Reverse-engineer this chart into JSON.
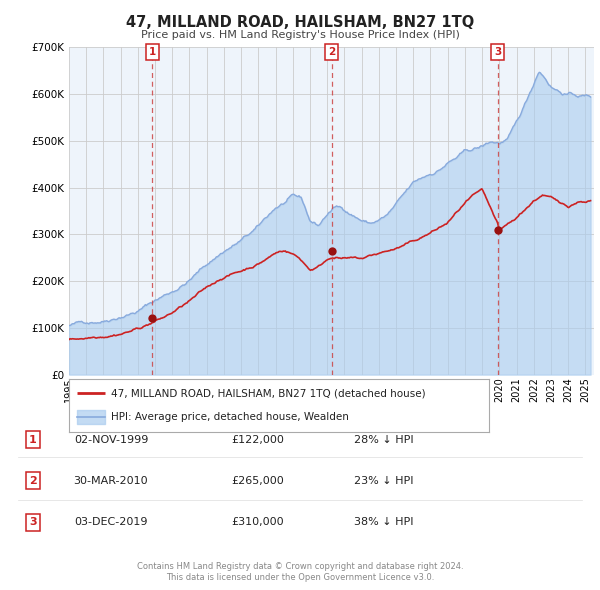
{
  "title": "47, MILLAND ROAD, HAILSHAM, BN27 1TQ",
  "subtitle": "Price paid vs. HM Land Registry's House Price Index (HPI)",
  "legend_line1": "47, MILLAND ROAD, HAILSHAM, BN27 1TQ (detached house)",
  "legend_line2": "HPI: Average price, detached house, Wealden",
  "footer1": "Contains HM Land Registry data © Crown copyright and database right 2024.",
  "footer2": "This data is licensed under the Open Government Licence v3.0.",
  "hpi_color": "#aaccee",
  "hpi_line_color": "#88aadd",
  "price_color": "#cc2222",
  "dot_color": "#991111",
  "fig_bg": "#ffffff",
  "plot_bg": "#eef4fb",
  "grid_color": "#cccccc",
  "dashed_color": "#cc4444",
  "ylim": [
    0,
    700000
  ],
  "yticks": [
    0,
    100000,
    200000,
    300000,
    400000,
    500000,
    600000,
    700000
  ],
  "ytick_labels": [
    "£0",
    "£100K",
    "£200K",
    "£300K",
    "£400K",
    "£500K",
    "£600K",
    "£700K"
  ],
  "xmin": 1995.0,
  "xmax": 2025.5,
  "sale_dates": [
    1999.84,
    2010.25,
    2019.92
  ],
  "sale_prices": [
    122000,
    265000,
    310000
  ],
  "sale_labels": [
    "1",
    "2",
    "3"
  ],
  "sale_info": [
    {
      "num": "1",
      "date": "02-NOV-1999",
      "price": "£122,000",
      "pct": "28%"
    },
    {
      "num": "2",
      "date": "30-MAR-2010",
      "price": "£265,000",
      "pct": "23%"
    },
    {
      "num": "3",
      "date": "03-DEC-2019",
      "price": "£310,000",
      "pct": "38%"
    }
  ],
  "hpi_base_x": [
    1995,
    1996,
    1997,
    1998,
    1999,
    2000,
    2001,
    2002,
    2003,
    2004,
    2005,
    2006,
    2007,
    2008.0,
    2008.5,
    2009.0,
    2009.5,
    2010.0,
    2010.5,
    2011.0,
    2011.5,
    2012.0,
    2012.5,
    2013.0,
    2013.5,
    2014.0,
    2014.5,
    2015.0,
    2015.5,
    2016.0,
    2016.5,
    2017.0,
    2017.5,
    2018.0,
    2018.5,
    2019.0,
    2019.5,
    2020.0,
    2020.5,
    2021.0,
    2021.5,
    2022.0,
    2022.3,
    2022.7,
    2023.0,
    2023.5,
    2024.0,
    2024.5,
    2025.3
  ],
  "hpi_base_y": [
    105000,
    112000,
    120000,
    135000,
    148000,
    170000,
    190000,
    215000,
    248000,
    278000,
    300000,
    325000,
    365000,
    385000,
    378000,
    330000,
    320000,
    345000,
    360000,
    355000,
    345000,
    335000,
    328000,
    335000,
    345000,
    365000,
    385000,
    405000,
    415000,
    425000,
    435000,
    450000,
    460000,
    470000,
    475000,
    480000,
    490000,
    488000,
    495000,
    525000,
    565000,
    610000,
    640000,
    625000,
    610000,
    600000,
    595000,
    592000,
    590000
  ],
  "price_base_x": [
    1995,
    1996,
    1997,
    1998,
    1999,
    1999.84,
    2000.5,
    2001,
    2002,
    2003,
    2004,
    2005,
    2006,
    2007,
    2007.5,
    2008.0,
    2008.5,
    2009.0,
    2009.5,
    2010.0,
    2010.25,
    2010.5,
    2011,
    2012,
    2013,
    2014,
    2015,
    2016,
    2017,
    2018,
    2018.5,
    2019,
    2019.92,
    2020.0,
    2020.5,
    2021,
    2021.5,
    2022,
    2022.5,
    2023,
    2023.5,
    2024,
    2024.5,
    2025.3
  ],
  "price_base_y": [
    75000,
    80000,
    88000,
    97000,
    108000,
    122000,
    132000,
    142000,
    165000,
    190000,
    215000,
    228000,
    245000,
    268000,
    275000,
    268000,
    255000,
    235000,
    242000,
    258000,
    265000,
    265000,
    262000,
    258000,
    268000,
    278000,
    290000,
    308000,
    328000,
    368000,
    382000,
    388000,
    310000,
    295000,
    308000,
    320000,
    340000,
    358000,
    372000,
    365000,
    350000,
    345000,
    355000,
    360000
  ]
}
